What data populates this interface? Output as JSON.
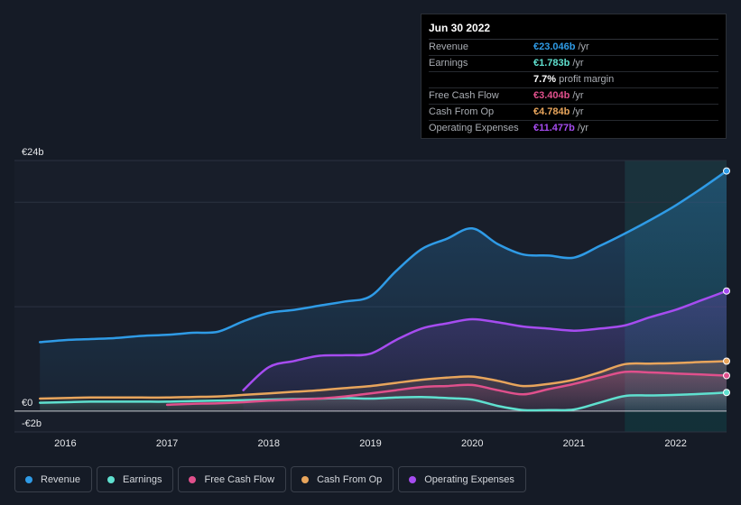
{
  "colors": {
    "revenue": "#2f9be6",
    "earnings": "#5fe0cf",
    "free_cash_flow": "#e0508c",
    "cash_from_op": "#e8a55c",
    "operating_expenses": "#a64cf0"
  },
  "tooltip": {
    "date": "Jun 30 2022",
    "rows": [
      {
        "label": "Revenue",
        "value": "€23.046b",
        "unit": "/yr",
        "color": "#2f9be6"
      },
      {
        "label": "Earnings",
        "value": "€1.783b",
        "unit": "/yr",
        "color": "#5fe0cf"
      },
      {
        "label": "",
        "value": "7.7%",
        "unit": "profit margin",
        "color": "#ffffff"
      },
      {
        "label": "Free Cash Flow",
        "value": "€3.404b",
        "unit": "/yr",
        "color": "#e0508c"
      },
      {
        "label": "Cash From Op",
        "value": "€4.784b",
        "unit": "/yr",
        "color": "#e8a55c"
      },
      {
        "label": "Operating Expenses",
        "value": "€11.477b",
        "unit": "/yr",
        "color": "#a64cf0"
      }
    ]
  },
  "legend": [
    {
      "label": "Revenue",
      "color": "#2f9be6"
    },
    {
      "label": "Earnings",
      "color": "#5fe0cf"
    },
    {
      "label": "Free Cash Flow",
      "color": "#e0508c"
    },
    {
      "label": "Cash From Op",
      "color": "#e8a55c"
    },
    {
      "label": "Operating Expenses",
      "color": "#a64cf0"
    }
  ],
  "chart_data": {
    "type": "area",
    "ylim": [
      -2,
      24
    ],
    "y_tick_labels": [
      {
        "value": 24,
        "label": "€24b"
      },
      {
        "value": 0,
        "label": "€0"
      },
      {
        "value": -2,
        "label": "-€2b"
      }
    ],
    "x_tick_labels": [
      {
        "value": 2016,
        "label": "2016"
      },
      {
        "value": 2017,
        "label": "2017"
      },
      {
        "value": 2018,
        "label": "2018"
      },
      {
        "value": 2019,
        "label": "2019"
      },
      {
        "value": 2020,
        "label": "2020"
      },
      {
        "value": 2021,
        "label": "2021"
      },
      {
        "value": 2022,
        "label": "2022"
      }
    ],
    "xlim": [
      2015.5,
      2022.5
    ],
    "highlight_from": 2021.5,
    "series": [
      {
        "name": "Revenue",
        "key": "revenue",
        "x": [
          2015.75,
          2016.0,
          2016.25,
          2016.5,
          2016.75,
          2017.0,
          2017.25,
          2017.5,
          2017.75,
          2018.0,
          2018.25,
          2018.5,
          2018.75,
          2019.0,
          2019.25,
          2019.5,
          2019.75,
          2020.0,
          2020.25,
          2020.5,
          2020.75,
          2021.0,
          2021.25,
          2021.5,
          2021.75,
          2022.0,
          2022.25,
          2022.5
        ],
        "values": [
          6.6,
          6.8,
          6.9,
          7.0,
          7.2,
          7.3,
          7.5,
          7.6,
          8.6,
          9.4,
          9.7,
          10.1,
          10.5,
          11.0,
          13.4,
          15.5,
          16.5,
          17.5,
          16.0,
          15.0,
          14.9,
          14.7,
          15.8,
          17.0,
          18.3,
          19.7,
          21.3,
          23.0
        ]
      },
      {
        "name": "Earnings",
        "key": "earnings",
        "x": [
          2015.75,
          2016.0,
          2016.25,
          2016.5,
          2016.75,
          2017.0,
          2017.25,
          2017.5,
          2017.75,
          2018.0,
          2018.25,
          2018.5,
          2018.75,
          2019.0,
          2019.25,
          2019.5,
          2019.75,
          2020.0,
          2020.25,
          2020.5,
          2020.75,
          2021.0,
          2021.25,
          2021.5,
          2021.75,
          2022.0,
          2022.25,
          2022.5
        ],
        "values": [
          0.8,
          0.85,
          0.9,
          0.9,
          0.9,
          0.9,
          0.95,
          1.0,
          1.05,
          1.1,
          1.15,
          1.2,
          1.25,
          1.2,
          1.3,
          1.35,
          1.25,
          1.1,
          0.5,
          0.1,
          0.1,
          0.15,
          0.8,
          1.45,
          1.5,
          1.55,
          1.65,
          1.78
        ]
      },
      {
        "name": "Free Cash Flow",
        "key": "free_cash_flow",
        "x": [
          2017.0,
          2017.25,
          2017.5,
          2017.75,
          2018.0,
          2018.25,
          2018.5,
          2018.75,
          2019.0,
          2019.25,
          2019.5,
          2019.75,
          2020.0,
          2020.25,
          2020.5,
          2020.75,
          2021.0,
          2021.25,
          2021.5,
          2021.75,
          2022.0,
          2022.25,
          2022.5
        ],
        "values": [
          0.6,
          0.7,
          0.75,
          0.85,
          1.0,
          1.1,
          1.2,
          1.4,
          1.7,
          2.0,
          2.3,
          2.4,
          2.5,
          2.0,
          1.6,
          2.1,
          2.6,
          3.2,
          3.75,
          3.7,
          3.6,
          3.5,
          3.4
        ]
      },
      {
        "name": "Cash From Op",
        "key": "cash_from_op",
        "x": [
          2015.75,
          2016.0,
          2016.25,
          2016.5,
          2016.75,
          2017.0,
          2017.25,
          2017.5,
          2017.75,
          2018.0,
          2018.25,
          2018.5,
          2018.75,
          2019.0,
          2019.25,
          2019.5,
          2019.75,
          2020.0,
          2020.25,
          2020.5,
          2020.75,
          2021.0,
          2021.25,
          2021.5,
          2021.75,
          2022.0,
          2022.25,
          2022.5
        ],
        "values": [
          1.2,
          1.25,
          1.3,
          1.3,
          1.3,
          1.3,
          1.35,
          1.4,
          1.55,
          1.7,
          1.85,
          2.0,
          2.2,
          2.4,
          2.7,
          3.0,
          3.2,
          3.3,
          2.9,
          2.4,
          2.6,
          3.0,
          3.7,
          4.5,
          4.55,
          4.6,
          4.7,
          4.78
        ]
      },
      {
        "name": "Operating Expenses",
        "key": "operating_expenses",
        "x": [
          2017.75,
          2018.0,
          2018.25,
          2018.5,
          2018.75,
          2019.0,
          2019.25,
          2019.5,
          2019.75,
          2020.0,
          2020.25,
          2020.5,
          2020.75,
          2021.0,
          2021.25,
          2021.5,
          2021.75,
          2022.0,
          2022.25,
          2022.5
        ],
        "values": [
          2.0,
          4.2,
          4.8,
          5.3,
          5.35,
          5.5,
          6.8,
          7.9,
          8.4,
          8.8,
          8.5,
          8.1,
          7.9,
          7.7,
          7.9,
          8.2,
          9.0,
          9.7,
          10.6,
          11.5
        ]
      }
    ]
  }
}
